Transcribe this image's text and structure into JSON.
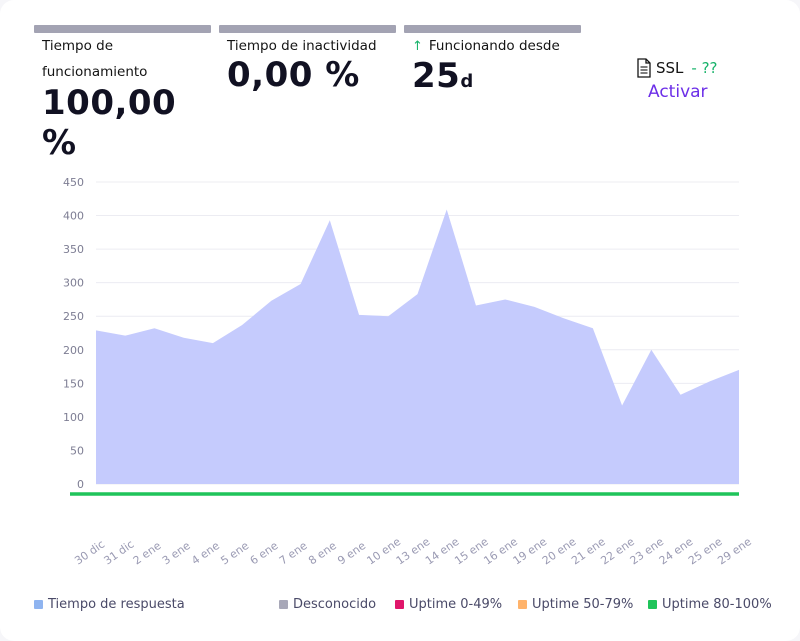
{
  "stats": {
    "uptime": {
      "label": "Tiempo de funcionamiento",
      "value": "100,00 %"
    },
    "downtime": {
      "label": "Tiempo de inactividad",
      "value": "0,00 %"
    },
    "since": {
      "label": "Funcionando desde",
      "value": "25",
      "unit": "d",
      "icon": "arrow-up-icon"
    }
  },
  "ssl": {
    "label": "SSL",
    "status": "- ??",
    "action": "Activar",
    "icon": "document-icon"
  },
  "chart_data": {
    "type": "area",
    "title": "",
    "xlabel": "",
    "ylabel": "",
    "ylim": [
      0,
      450
    ],
    "yticks": [
      0,
      50,
      100,
      150,
      200,
      250,
      300,
      350,
      400,
      450
    ],
    "categories": [
      "30 dic",
      "31 dic",
      "2 ene",
      "3 ene",
      "4 ene",
      "5 ene",
      "6 ene",
      "7 ene",
      "8 ene",
      "9 ene",
      "10 ene",
      "13 ene",
      "14 ene",
      "15 ene",
      "16 ene",
      "19 ene",
      "20 ene",
      "21 ene",
      "22 ene",
      "23 ene",
      "24 ene",
      "25 ene",
      "29 ene"
    ],
    "series": [
      {
        "name": "Tiempo de respuesta",
        "color": "#c5cbfd",
        "values": [
          229,
          221,
          232,
          218,
          210,
          237,
          273,
          298,
          393,
          252,
          250,
          283,
          409,
          266,
          275,
          264,
          247,
          232,
          117,
          200,
          133,
          153,
          170
        ]
      },
      {
        "name": "Uptime 80-100%",
        "color": "#1fc45a",
        "values": [
          0,
          0,
          0,
          0,
          0,
          0,
          0,
          0,
          0,
          0,
          0,
          0,
          0,
          0,
          0,
          0,
          0,
          0,
          0,
          0,
          0,
          0,
          0
        ]
      }
    ]
  },
  "legend": [
    {
      "label": "Tiempo de respuesta",
      "color": "#8fb4f0"
    },
    {
      "label": "Desconocido",
      "color": "#a8a8b8"
    },
    {
      "label": "Uptime 0-49%",
      "color": "#e0166a"
    },
    {
      "label": "Uptime 50-79%",
      "color": "#ffb36b"
    },
    {
      "label": "Uptime 80-100%",
      "color": "#1fc45a"
    }
  ]
}
